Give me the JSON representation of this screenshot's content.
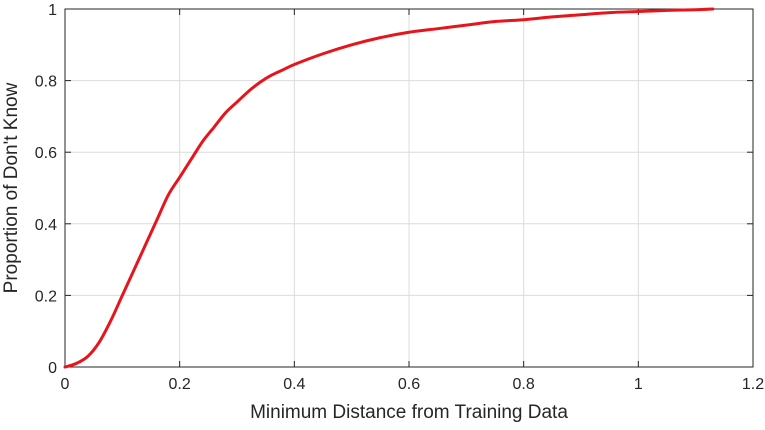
{
  "chart_data": {
    "type": "line",
    "title": "",
    "xlabel": "Minimum Distance from Training Data",
    "ylabel": "Proportion of Don't Know",
    "xlim": [
      0,
      1.2
    ],
    "ylim": [
      0,
      1
    ],
    "x_ticks": [
      "0",
      "0.2",
      "0.4",
      "0.6",
      "0.8",
      "1",
      "1.2"
    ],
    "y_ticks": [
      "0",
      "0.2",
      "0.4",
      "0.6",
      "0.8",
      "1"
    ],
    "grid": true,
    "legend": "none",
    "colors": {
      "line": "#e8141c",
      "grid": "#dcdcdc",
      "axis": "#262626"
    },
    "series": [
      {
        "x": [
          0,
          0.02,
          0.04,
          0.06,
          0.08,
          0.1,
          0.12,
          0.14,
          0.16,
          0.18,
          0.2,
          0.22,
          0.24,
          0.26,
          0.28,
          0.3,
          0.32,
          0.34,
          0.36,
          0.38,
          0.4,
          0.45,
          0.5,
          0.55,
          0.6,
          0.65,
          0.7,
          0.75,
          0.8,
          0.85,
          0.9,
          0.95,
          1.0,
          1.05,
          1.1,
          1.13
        ],
        "y": [
          0,
          0.01,
          0.03,
          0.07,
          0.13,
          0.2,
          0.27,
          0.34,
          0.41,
          0.48,
          0.53,
          0.58,
          0.63,
          0.67,
          0.71,
          0.74,
          0.77,
          0.795,
          0.815,
          0.83,
          0.845,
          0.875,
          0.9,
          0.92,
          0.935,
          0.945,
          0.955,
          0.965,
          0.97,
          0.978,
          0.984,
          0.99,
          0.993,
          0.996,
          0.998,
          1.0
        ]
      }
    ]
  }
}
